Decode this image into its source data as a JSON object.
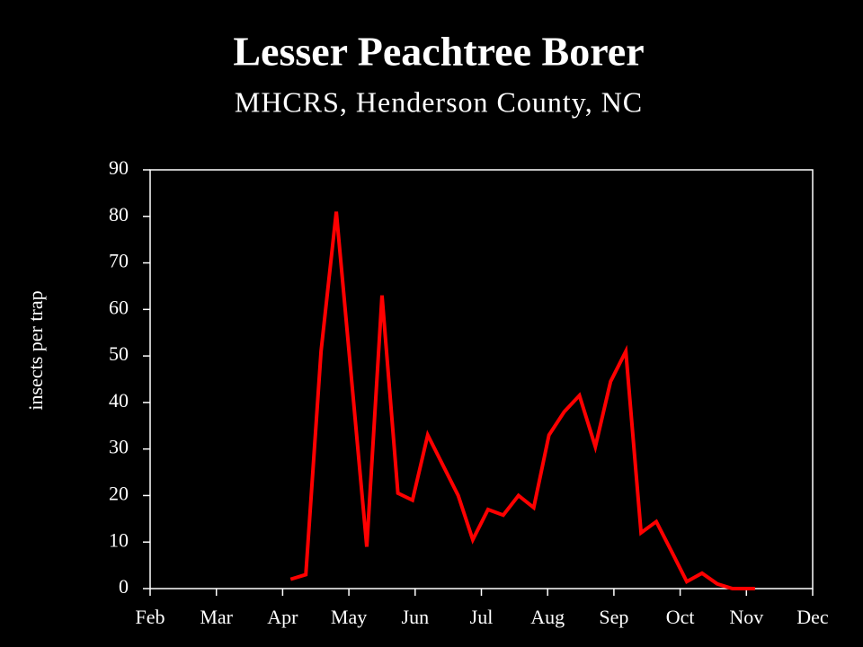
{
  "chart_data": {
    "type": "line",
    "title": "Lesser Peachtree Borer",
    "subtitle": "MHCRS, Henderson County, NC",
    "y_label": "insects per trap",
    "x": [
      4.12,
      4.35,
      4.58,
      4.81,
      5.27,
      5.5,
      5.74,
      5.96,
      6.19,
      6.42,
      6.65,
      6.87,
      7.1,
      7.33,
      7.56,
      7.79,
      8.02,
      8.25,
      8.48,
      8.72,
      8.95,
      9.18,
      9.41,
      9.64,
      9.87,
      10.1,
      10.33,
      10.56,
      10.79,
      11.13
    ],
    "series": [
      {
        "color": "#ff0000",
        "values": [
          2,
          3,
          51,
          81,
          9,
          63,
          20.5,
          19,
          33,
          26.5,
          20,
          10.5,
          17,
          15.8,
          20,
          17.4,
          33,
          38,
          41.5,
          30.5,
          44.5,
          51,
          12,
          14.4,
          8,
          1.5,
          3.3,
          1,
          0,
          0
        ]
      }
    ],
    "xlim": [
      2,
      12
    ],
    "xticks": [
      {
        "value": 2,
        "label": "Feb"
      },
      {
        "value": 3,
        "label": "Mar"
      },
      {
        "value": 4,
        "label": "Apr"
      },
      {
        "value": 5,
        "label": "May"
      },
      {
        "value": 6,
        "label": "Jun"
      },
      {
        "value": 7,
        "label": "Jul"
      },
      {
        "value": 8,
        "label": "Aug"
      },
      {
        "value": 9,
        "label": "Sep"
      },
      {
        "value": 10,
        "label": "Oct"
      },
      {
        "value": 11,
        "label": "Nov"
      },
      {
        "value": 12,
        "label": "Dec"
      }
    ],
    "ylim": [
      0,
      90
    ],
    "yticks": [
      0,
      10,
      20,
      30,
      40,
      50,
      60,
      70,
      80,
      90
    ],
    "grid": false
  }
}
